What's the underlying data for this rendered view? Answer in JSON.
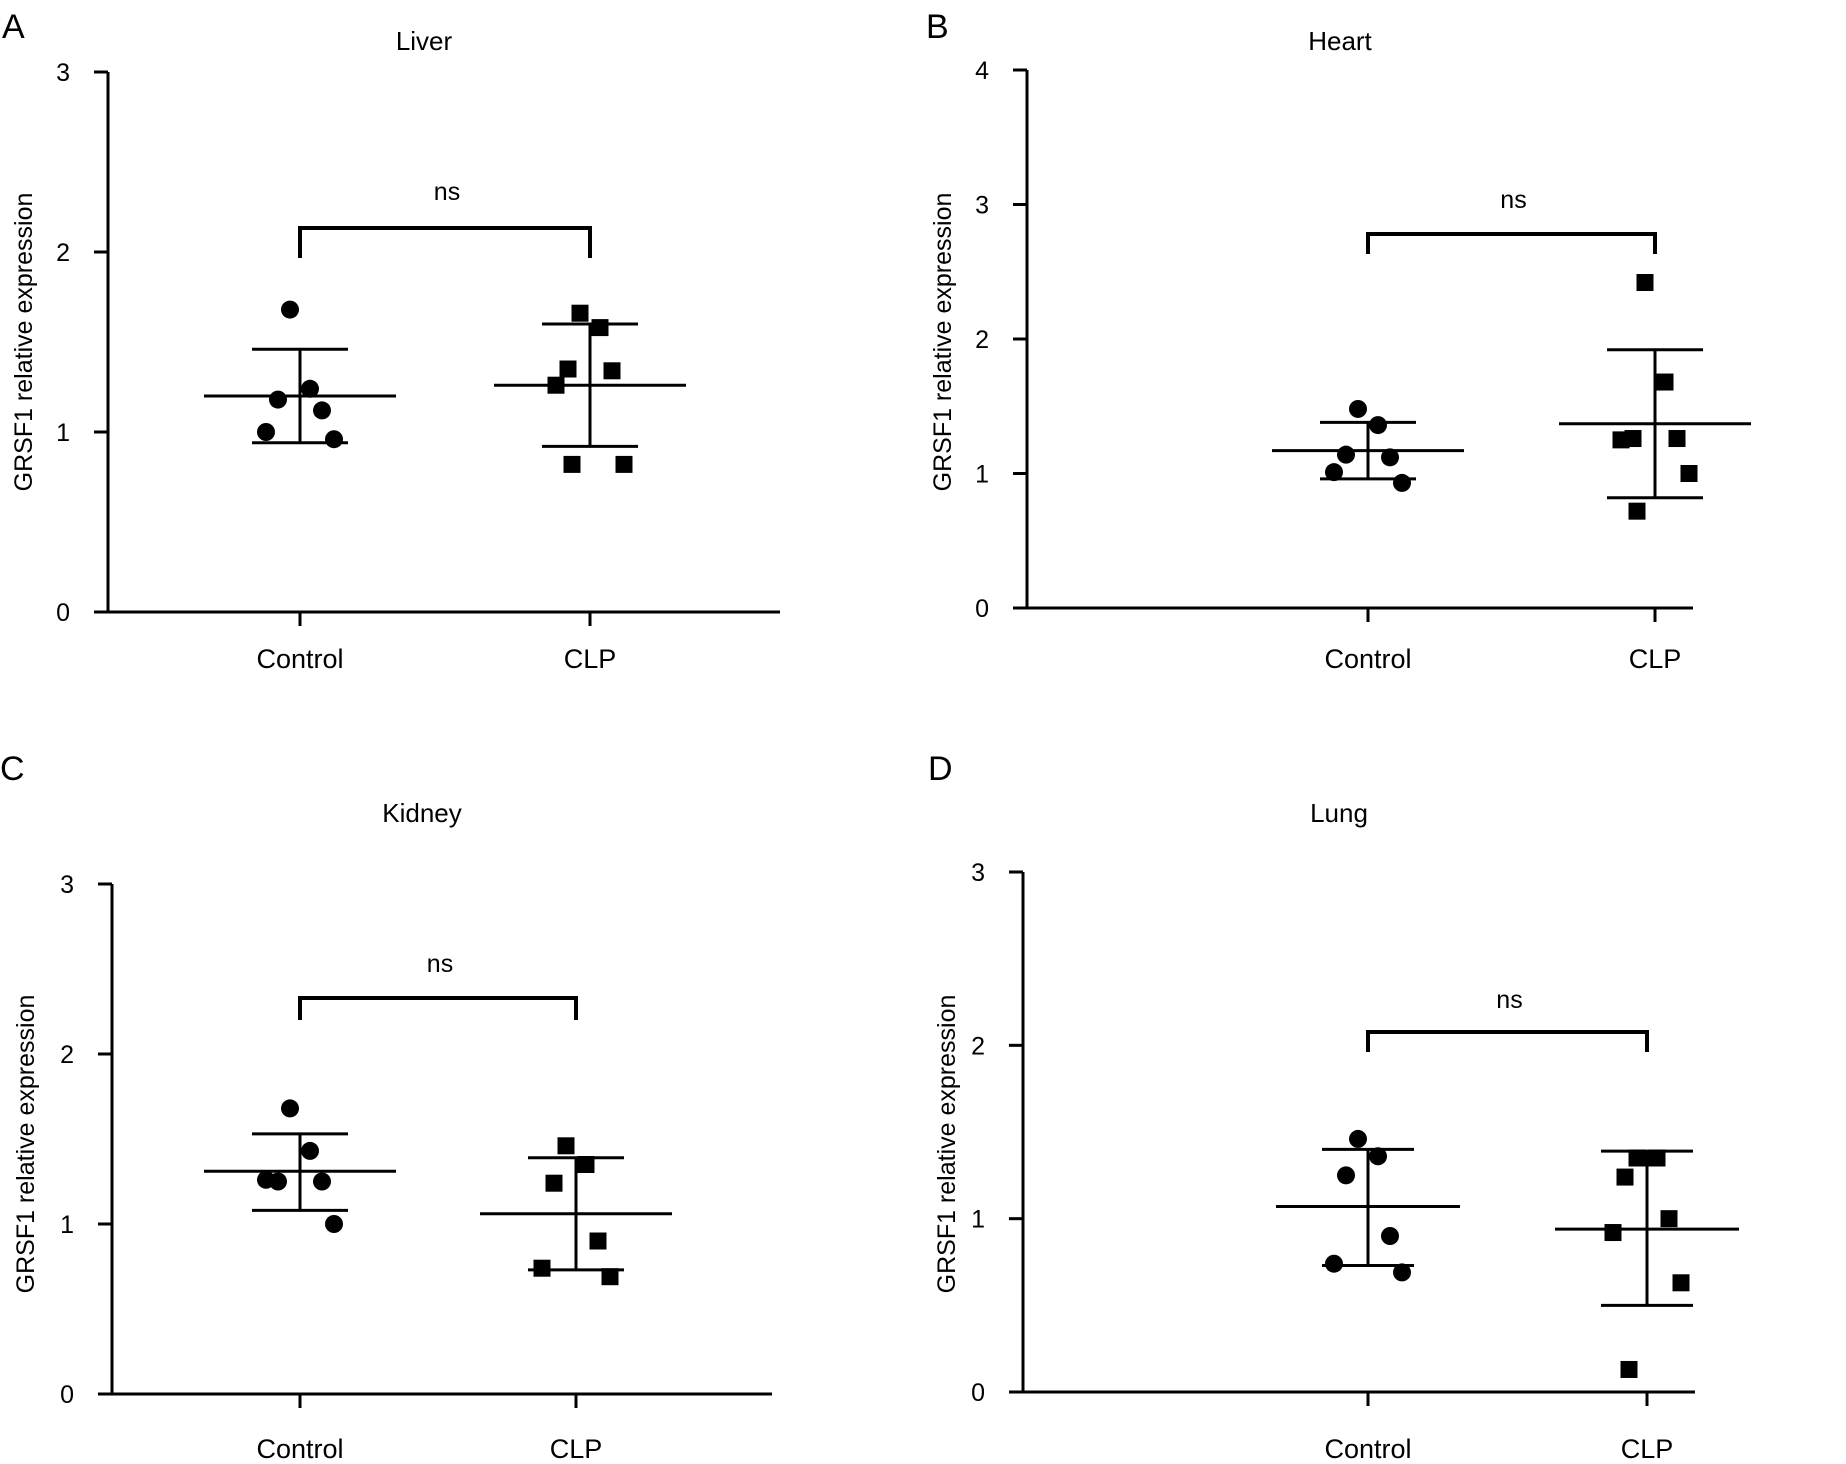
{
  "chart_data": [
    {
      "panel": "A",
      "type": "scatter",
      "title": "Liver",
      "ylabel": "GRSF1 relative expression",
      "xlabel": "",
      "categories": [
        "Control",
        "CLP"
      ],
      "ylim": [
        0,
        3
      ],
      "yticks": [
        0,
        1,
        2,
        3
      ],
      "significance": "ns",
      "groups": [
        {
          "name": "Control",
          "marker": "circle",
          "points": [
            1.68,
            1.24,
            1.18,
            1.12,
            1.0,
            0.96
          ],
          "mean": 1.2,
          "sd_low": 0.94,
          "sd_high": 1.46
        },
        {
          "name": "CLP",
          "marker": "square",
          "points": [
            1.66,
            1.58,
            1.35,
            1.34,
            1.26,
            0.82,
            0.82
          ],
          "mean": 1.26,
          "sd_low": 0.92,
          "sd_high": 1.6
        }
      ]
    },
    {
      "panel": "B",
      "type": "scatter",
      "title": "Heart",
      "ylabel": "GRSF1 relative expression",
      "xlabel": "",
      "categories": [
        "Control",
        "CLP"
      ],
      "ylim": [
        0,
        4
      ],
      "yticks": [
        0,
        1,
        2,
        3,
        4
      ],
      "significance": "ns",
      "groups": [
        {
          "name": "Control",
          "marker": "circle",
          "points": [
            1.48,
            1.36,
            1.14,
            1.12,
            1.01,
            0.93
          ],
          "mean": 1.17,
          "sd_low": 0.96,
          "sd_high": 1.38
        },
        {
          "name": "CLP",
          "marker": "square",
          "points": [
            2.42,
            1.68,
            1.26,
            1.26,
            1.25,
            1.0,
            0.72
          ],
          "mean": 1.37,
          "sd_low": 0.82,
          "sd_high": 1.92
        }
      ]
    },
    {
      "panel": "C",
      "type": "scatter",
      "title": "Kidney",
      "ylabel": "GRSF1 relative expression",
      "xlabel": "",
      "categories": [
        "Control",
        "CLP"
      ],
      "ylim": [
        0,
        3
      ],
      "yticks": [
        0,
        1,
        2,
        3
      ],
      "significance": "ns",
      "groups": [
        {
          "name": "Control",
          "marker": "circle",
          "points": [
            1.68,
            1.43,
            1.25,
            1.25,
            1.26,
            1.0
          ],
          "mean": 1.31,
          "sd_low": 1.08,
          "sd_high": 1.53
        },
        {
          "name": "CLP",
          "marker": "square",
          "points": [
            1.46,
            1.35,
            1.24,
            0.9,
            0.74,
            0.69
          ],
          "mean": 1.06,
          "sd_low": 0.73,
          "sd_high": 1.39
        }
      ]
    },
    {
      "panel": "D",
      "type": "scatter",
      "title": "Lung",
      "ylabel": "GRSF1 relative expression",
      "xlabel": "",
      "categories": [
        "Control",
        "CLP"
      ],
      "ylim": [
        0,
        3
      ],
      "yticks": [
        0,
        1,
        2,
        3
      ],
      "significance": "ns",
      "groups": [
        {
          "name": "Control",
          "marker": "circle",
          "points": [
            1.46,
            1.36,
            1.25,
            0.9,
            0.74,
            0.69
          ],
          "mean": 1.07,
          "sd_low": 0.73,
          "sd_high": 1.4
        },
        {
          "name": "CLP",
          "marker": "square",
          "points": [
            1.35,
            1.35,
            1.24,
            1.0,
            0.92,
            0.63,
            0.13
          ],
          "mean": 0.94,
          "sd_low": 0.5,
          "sd_high": 1.39
        }
      ]
    }
  ]
}
